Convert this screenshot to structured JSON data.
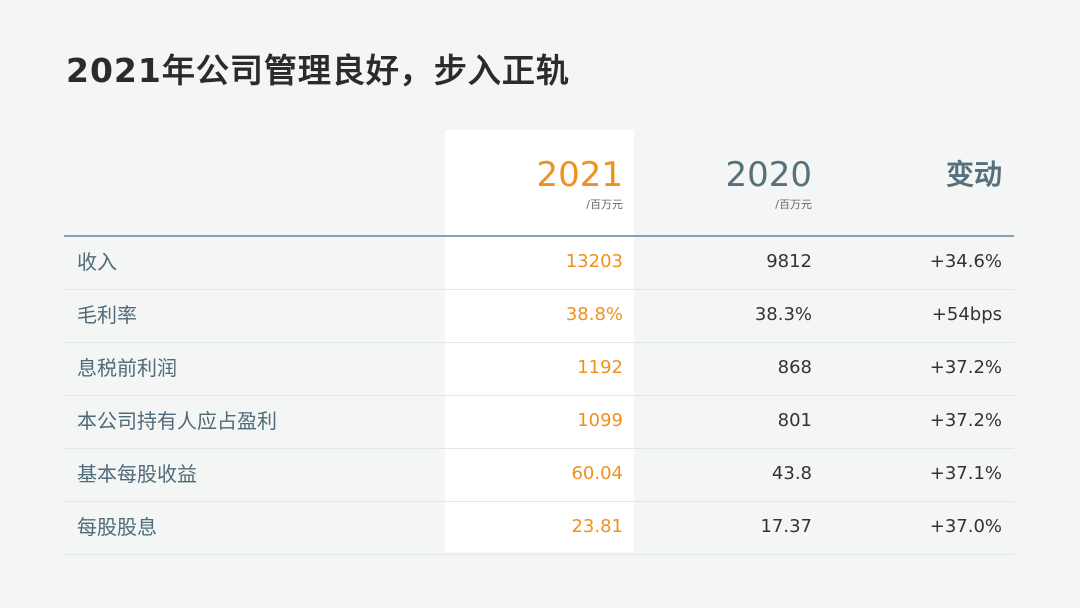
{
  "title": "2021年公司管理良好，步入正轨",
  "columns": {
    "y2021": {
      "label": "2021",
      "unit": "/百万元"
    },
    "y2020": {
      "label": "2020",
      "unit": "/百万元"
    },
    "change": {
      "label": "变动"
    }
  },
  "colors": {
    "accent_2021": "#f0901e",
    "header_blue": "#56707c",
    "label_blue": "#4f6b78"
  },
  "rows": [
    {
      "label": "收入",
      "y2021": "13203",
      "y2020": "9812",
      "change": "+34.6%"
    },
    {
      "label": "毛利率",
      "y2021": "38.8%",
      "y2020": "38.3%",
      "change": "+54bps"
    },
    {
      "label": "息税前利润",
      "y2021": "1192",
      "y2020": "868",
      "change": "+37.2%"
    },
    {
      "label": "本公司持有人应占盈利",
      "y2021": "1099",
      "y2020": "801",
      "change": "+37.2%"
    },
    {
      "label": "基本每股收益",
      "y2021": "60.04",
      "y2020": "43.8",
      "change": "+37.1%"
    },
    {
      "label": "每股股息",
      "y2021": "23.81",
      "y2020": "17.37",
      "change": "+37.0%"
    }
  ]
}
